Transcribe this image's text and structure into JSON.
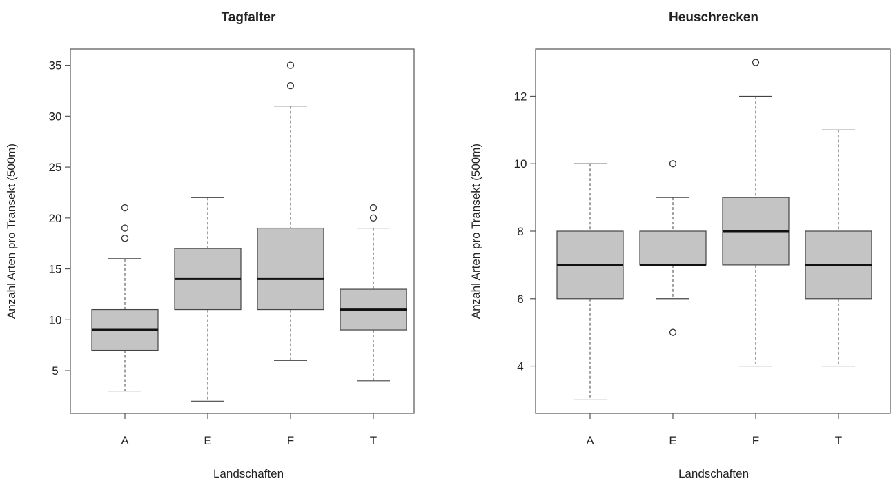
{
  "chart_data": [
    {
      "type": "box",
      "title": "Tagfalter",
      "xlabel": "Landschaften",
      "ylabel": "Anzahl Arten pro Transekt (500m)",
      "categories": [
        "A",
        "E",
        "F",
        "T"
      ],
      "yticks": [
        5,
        10,
        15,
        20,
        25,
        30,
        35
      ],
      "ylim": [
        0.8,
        36.6
      ],
      "boxes": [
        {
          "category": "A",
          "whisker_low": 3,
          "q1": 7,
          "median": 9,
          "q3": 11,
          "whisker_high": 16,
          "outliers": [
            18,
            19,
            21
          ]
        },
        {
          "category": "E",
          "whisker_low": 2,
          "q1": 11,
          "median": 14,
          "q3": 17,
          "whisker_high": 22,
          "outliers": []
        },
        {
          "category": "F",
          "whisker_low": 6,
          "q1": 11,
          "median": 14,
          "q3": 19,
          "whisker_high": 31,
          "outliers": [
            33,
            35
          ]
        },
        {
          "category": "T",
          "whisker_low": 4,
          "q1": 9,
          "median": 11,
          "q3": 13,
          "whisker_high": 19,
          "outliers": [
            20,
            21
          ]
        }
      ]
    },
    {
      "type": "box",
      "title": "Heuschrecken",
      "xlabel": "Landschaften",
      "ylabel": "Anzahl Arten pro Transekt (500m)",
      "categories": [
        "A",
        "E",
        "F",
        "T"
      ],
      "yticks": [
        4,
        6,
        8,
        10,
        12
      ],
      "ylim": [
        2.6,
        13.4
      ],
      "boxes": [
        {
          "category": "A",
          "whisker_low": 3,
          "q1": 6,
          "median": 7,
          "q3": 8,
          "whisker_high": 10,
          "outliers": []
        },
        {
          "category": "E",
          "whisker_low": 6,
          "q1": 7,
          "median": 7,
          "q3": 8,
          "whisker_high": 9,
          "outliers": [
            5,
            10
          ]
        },
        {
          "category": "F",
          "whisker_low": 4,
          "q1": 7,
          "median": 8,
          "q3": 9,
          "whisker_high": 12,
          "outliers": [
            13
          ]
        },
        {
          "category": "T",
          "whisker_low": 4,
          "q1": 6,
          "median": 7,
          "q3": 8,
          "whisker_high": 11,
          "outliers": []
        }
      ]
    }
  ]
}
